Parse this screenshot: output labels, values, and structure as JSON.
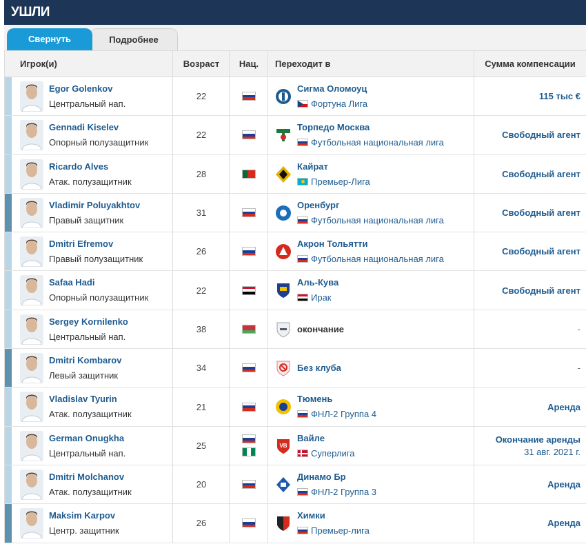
{
  "section": {
    "title": "УШЛИ"
  },
  "tabs": [
    {
      "label": "Свернуть",
      "active": true
    },
    {
      "label": "Подробнее",
      "active": false
    }
  ],
  "columns": {
    "player": "Игрок(и)",
    "age": "Возраст",
    "nat": "Нац.",
    "club": "Переходит в",
    "fee": "Сумма компенсации"
  },
  "colors": {
    "header_bg": "#1d3557",
    "tab_active": "#1a9ad6",
    "link": "#1d5b90",
    "strip_light": "#b8d6e8",
    "strip_dark": "#5e91ad"
  },
  "rows": [
    {
      "name": "Egor Golenkov",
      "position": "Центральный нап.",
      "age": "22",
      "nat": [
        "RU"
      ],
      "club": "Сигма Оломоуц",
      "club_icon": "sigma-logo",
      "league_flag": "CZ",
      "league": "Фортуна Лига",
      "fee": "115 тыс €",
      "fee_sub": "",
      "strip": "light"
    },
    {
      "name": "Gennadi Kiselev",
      "position": "Опорный полузащитник",
      "age": "22",
      "nat": [
        "RU"
      ],
      "club": "Торпедо Москва",
      "club_icon": "torpedo-logo",
      "league_flag": "RU",
      "league": "Футбольная национальная лига",
      "fee": "Свободный агент",
      "fee_sub": "",
      "strip": "light"
    },
    {
      "name": "Ricardo Alves",
      "position": "Атак. полузащитник",
      "age": "28",
      "nat": [
        "PT"
      ],
      "club": "Кайрат",
      "club_icon": "kairat-logo",
      "league_flag": "KZ",
      "league": "Премьер-Лига",
      "fee": "Свободный агент",
      "fee_sub": "",
      "strip": "light"
    },
    {
      "name": "Vladimir Poluyakhtov",
      "position": "Правый защитник",
      "age": "31",
      "nat": [
        "RU"
      ],
      "club": "Оренбург",
      "club_icon": "orenburg-logo",
      "league_flag": "RU",
      "league": "Футбольная национальная лига",
      "fee": "Свободный агент",
      "fee_sub": "",
      "strip": "dark"
    },
    {
      "name": "Dmitri Efremov",
      "position": "Правый полузащитник",
      "age": "26",
      "nat": [
        "RU"
      ],
      "club": "Акрон Тольятти",
      "club_icon": "akron-logo",
      "league_flag": "RU",
      "league": "Футбольная национальная лига",
      "fee": "Свободный агент",
      "fee_sub": "",
      "strip": "light"
    },
    {
      "name": "Safaa Hadi",
      "position": "Опорный полузащитник",
      "age": "22",
      "nat": [
        "IQ"
      ],
      "club": "Аль-Кува",
      "club_icon": "alquwa-logo",
      "league_flag": "IQ",
      "league": "Ирак",
      "fee": "Свободный агент",
      "fee_sub": "",
      "strip": "light"
    },
    {
      "name": "Sergey Kornilenko",
      "position": "Центральный нап.",
      "age": "38",
      "nat": [
        "BY"
      ],
      "club": "окончание",
      "club_icon": "retired-icon",
      "league_flag": "",
      "league": "",
      "fee": "-",
      "fee_sub": "",
      "strip": "light"
    },
    {
      "name": "Dmitri Kombarov",
      "position": "Левый защитник",
      "age": "34",
      "nat": [
        "RU"
      ],
      "club": "Без клуба",
      "club_icon": "no-club-icon",
      "league_flag": "",
      "league": "",
      "fee": "-",
      "fee_sub": "",
      "strip": "dark"
    },
    {
      "name": "Vladislav Tyurin",
      "position": "Атак. полузащитник",
      "age": "21",
      "nat": [
        "RU"
      ],
      "club": "Тюмень",
      "club_icon": "tyumen-logo",
      "league_flag": "RU",
      "league": "ФНЛ-2 Группа 4",
      "fee": "Аренда",
      "fee_sub": "",
      "strip": "light"
    },
    {
      "name": "German Onugkha",
      "position": "Центральный нап.",
      "age": "25",
      "nat": [
        "RU",
        "NG"
      ],
      "club": "Вайле",
      "club_icon": "vejle-logo",
      "league_flag": "DK",
      "league": "Суперлига",
      "fee": "Окончание аренды",
      "fee_sub": "31 авг. 2021 г.",
      "strip": "light"
    },
    {
      "name": "Dmitri Molchanov",
      "position": "Атак. полузащитник",
      "age": "20",
      "nat": [
        "RU"
      ],
      "club": "Динамо Бр",
      "club_icon": "dinamo-br-logo",
      "league_flag": "RU",
      "league": "ФНЛ-2 Группа 3",
      "fee": "Аренда",
      "fee_sub": "",
      "strip": "light"
    },
    {
      "name": "Maksim Karpov",
      "position": "Центр. защитник",
      "age": "26",
      "nat": [
        "RU"
      ],
      "club": "Химки",
      "club_icon": "khimki-logo",
      "league_flag": "RU",
      "league": "Премьер-лига",
      "fee": "Аренда",
      "fee_sub": "",
      "strip": "dark"
    }
  ]
}
